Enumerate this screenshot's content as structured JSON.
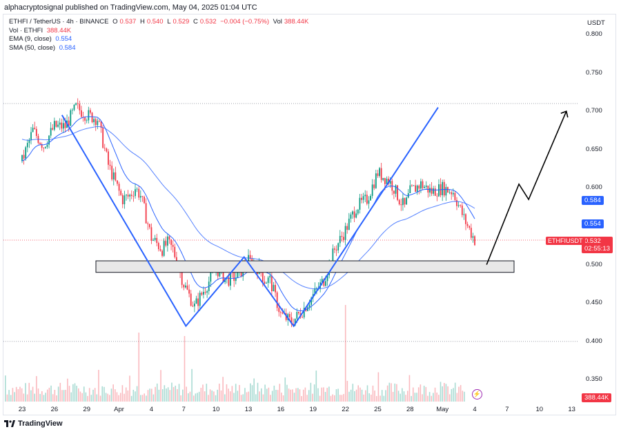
{
  "header": {
    "published": "alphacryptosignal published on TradingView.com, May 04, 2025 01:04 UTC"
  },
  "legend": {
    "symbol_line": "ETHFI / TetherUS · 4h · BINANCE",
    "o_label": "O",
    "o": "0.537",
    "h_label": "H",
    "h": "0.540",
    "l_label": "L",
    "l": "0.529",
    "c_label": "C",
    "c": "0.532",
    "change": "−0.004 (−0.75%)",
    "vol_label": "Vol",
    "vol": "388.44K",
    "vol_line_label": "Vol · ETHFI",
    "vol_line_value": "388.44K",
    "ema_label": "EMA (9, close)",
    "ema_value": "0.554",
    "sma_label": "SMA (50, close)",
    "sma_value": "0.584"
  },
  "axis": {
    "unit": "USDT",
    "y_ticks": [
      "0.800",
      "0.750",
      "0.700",
      "0.650",
      "0.600",
      "0.550",
      "0.500",
      "0.450",
      "0.400",
      "0.350"
    ],
    "x_ticks": [
      "23",
      "26",
      "29",
      "Apr",
      "4",
      "7",
      "10",
      "13",
      "16",
      "19",
      "22",
      "25",
      "28",
      "May",
      "4",
      "7",
      "10",
      "13"
    ]
  },
  "badges": {
    "sma": "0.584",
    "ema": "0.554",
    "price": "0.532",
    "countdown": "02:55:13",
    "symbol": "ETHFIUSDT",
    "volume": "388.44K"
  },
  "footer": {
    "brand": "TradingView"
  },
  "colors": {
    "up": "#089981",
    "down": "#f23645",
    "ema": "#2962ff",
    "sma": "#2962ff",
    "trend": "#2962ff",
    "projection": "#000000",
    "support_zone": "#e8e8e8"
  },
  "chart_data": {
    "type": "candlestick",
    "title": "ETHFI / TetherUS · 4h · BINANCE",
    "xlabel": "",
    "ylabel": "USDT",
    "ylim": [
      0.33,
      0.82
    ],
    "grid": false,
    "x_categories": [
      "Mar 23",
      "Mar 26",
      "Mar 29",
      "Apr 1",
      "Apr 4",
      "Apr 7",
      "Apr 10",
      "Apr 13",
      "Apr 16",
      "Apr 19",
      "Apr 22",
      "Apr 25",
      "Apr 28",
      "May 1",
      "May 4",
      "May 7",
      "May 10",
      "May 13"
    ],
    "price_path": {
      "x_day": [
        0,
        1,
        2,
        2.5,
        3,
        4,
        5,
        6,
        7,
        8,
        9,
        9.3,
        10,
        10.5,
        11,
        12,
        13,
        13.5,
        14,
        15,
        16,
        17,
        18,
        19,
        20,
        21,
        22,
        22.5,
        23,
        24,
        25,
        26,
        27,
        28,
        29,
        30,
        31,
        32,
        33,
        34,
        34.5,
        35,
        35.5,
        36,
        37,
        38,
        39,
        40,
        41,
        42
      ],
      "close": [
        0.635,
        0.675,
        0.655,
        0.668,
        0.68,
        0.68,
        0.705,
        0.695,
        0.69,
        0.63,
        0.595,
        0.585,
        0.59,
        0.6,
        0.59,
        0.535,
        0.52,
        0.528,
        0.52,
        0.475,
        0.445,
        0.47,
        0.495,
        0.48,
        0.485,
        0.505,
        0.495,
        0.48,
        0.48,
        0.435,
        0.425,
        0.44,
        0.46,
        0.48,
        0.52,
        0.545,
        0.575,
        0.585,
        0.62,
        0.61,
        0.6,
        0.585,
        0.575,
        0.595,
        0.605,
        0.595,
        0.6,
        0.595,
        0.56,
        0.532
      ]
    },
    "ema_9": {
      "name": "EMA (9, close)",
      "last": 0.554
    },
    "sma_50": {
      "name": "SMA (50, close)",
      "last": 0.584
    },
    "support_zone": [
      0.49,
      0.505
    ],
    "dotted_levels": [
      0.71,
      0.532,
      0.4
    ],
    "volume_last": "388.44K"
  }
}
